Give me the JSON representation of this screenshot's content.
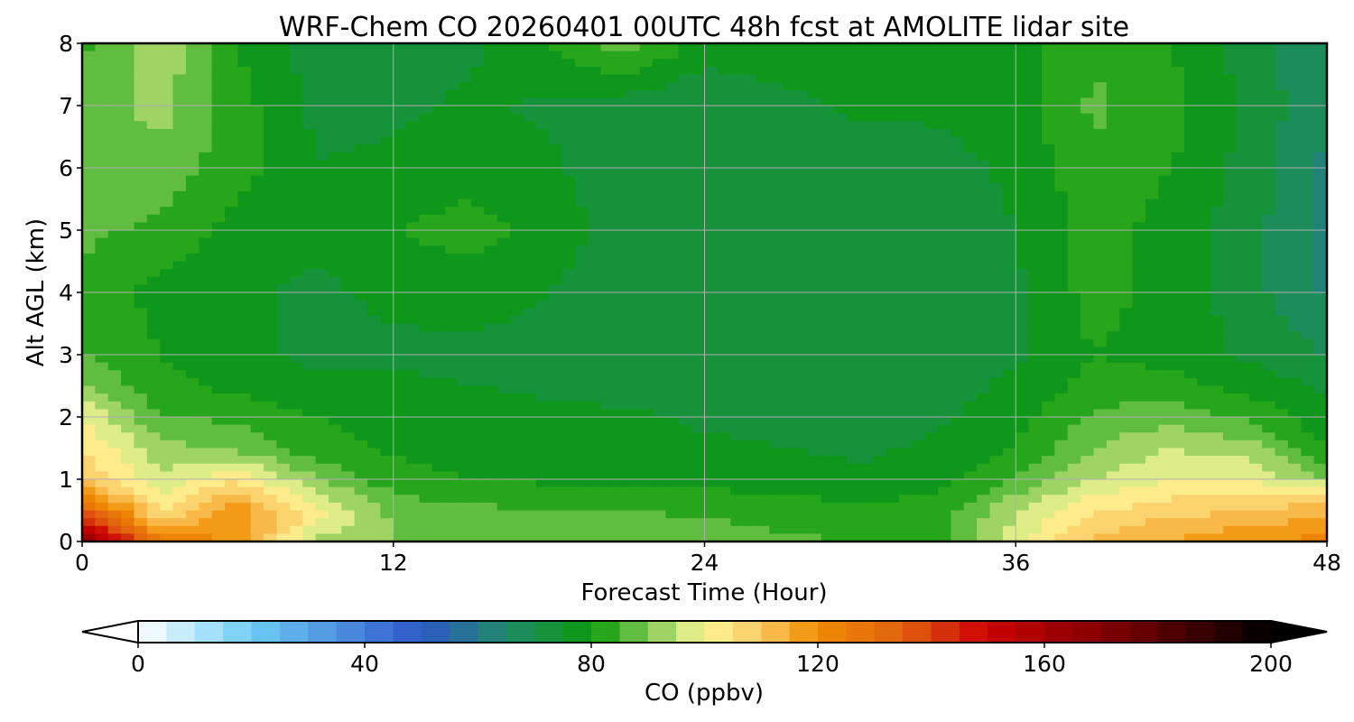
{
  "chart_data": {
    "type": "heatmap",
    "title": "WRF-Chem CO  20260401 00UTC 48h fcst at AMOLITE lidar site",
    "xlabel": "Forecast Time (Hour)",
    "ylabel": "Alt AGL (km)",
    "xlim": [
      0,
      48
    ],
    "ylim": [
      0,
      8
    ],
    "xticks": [
      "0",
      "12",
      "24",
      "36",
      "48"
    ],
    "yticks": [
      "0",
      "1",
      "2",
      "3",
      "4",
      "5",
      "6",
      "7",
      "8"
    ],
    "grid": true,
    "x": [
      0,
      3,
      6,
      9,
      12,
      15,
      18,
      21,
      24,
      27,
      30,
      33,
      36,
      39,
      42,
      45,
      48
    ],
    "y": [
      0,
      0.25,
      0.5,
      0.75,
      1,
      1.5,
      2,
      2.5,
      3,
      4,
      5,
      6,
      7,
      8
    ],
    "z": [
      [
        170,
        128,
        118,
        92,
        90,
        88,
        89,
        90,
        88,
        86,
        85,
        84,
        98,
        112,
        115,
        118,
        122
      ],
      [
        150,
        112,
        120,
        100,
        90,
        88,
        87,
        87,
        86,
        84,
        83,
        83,
        96,
        108,
        112,
        115,
        118
      ],
      [
        135,
        105,
        118,
        102,
        88,
        86,
        85,
        85,
        84,
        82,
        81,
        82,
        94,
        104,
        108,
        110,
        112
      ],
      [
        120,
        100,
        112,
        96,
        85,
        83,
        82,
        82,
        81,
        80,
        79,
        80,
        90,
        100,
        104,
        106,
        108
      ],
      [
        110,
        96,
        104,
        90,
        82,
        80,
        79,
        79,
        78,
        77,
        76,
        78,
        85,
        95,
        100,
        100,
        90
      ],
      [
        105,
        92,
        88,
        82,
        79,
        78,
        77,
        77,
        76,
        75,
        74,
        76,
        80,
        90,
        95,
        92,
        80
      ],
      [
        100,
        85,
        84,
        80,
        78,
        77,
        76,
        76,
        74,
        73,
        73,
        74,
        78,
        86,
        88,
        84,
        76
      ],
      [
        90,
        82,
        78,
        76,
        76,
        75,
        74,
        73,
        72,
        72,
        72,
        73,
        76,
        82,
        82,
        78,
        74
      ],
      [
        85,
        80,
        76,
        74,
        74,
        74,
        73,
        72,
        71,
        71,
        71,
        72,
        74,
        80,
        78,
        74,
        70
      ],
      [
        84,
        78,
        76,
        74,
        76,
        77,
        75,
        72,
        71,
        71,
        71,
        72,
        74,
        82,
        78,
        72,
        64
      ],
      [
        86,
        84,
        78,
        76,
        80,
        82,
        78,
        72,
        71,
        71,
        70,
        72,
        75,
        82,
        78,
        72,
        63
      ],
      [
        88,
        88,
        82,
        75,
        76,
        78,
        76,
        71,
        70,
        71,
        72,
        73,
        76,
        84,
        80,
        73,
        64
      ],
      [
        86,
        92,
        82,
        74,
        74,
        76,
        74,
        72,
        70,
        73,
        76,
        76,
        78,
        86,
        82,
        74,
        65
      ],
      [
        84,
        94,
        80,
        72,
        70,
        74,
        80,
        88,
        78,
        80,
        80,
        76,
        78,
        84,
        80,
        72,
        65
      ]
    ],
    "colorbar": {
      "label": "CO  (ppbv)",
      "ticks": [
        "0",
        "40",
        "80",
        "120",
        "160",
        "200"
      ],
      "range": [
        0,
        200
      ],
      "extend": "both",
      "stops": [
        {
          "v": 0,
          "c": "#ffffff"
        },
        {
          "v": 20,
          "c": "#6ecdf6"
        },
        {
          "v": 50,
          "c": "#2e58c8"
        },
        {
          "v": 65,
          "c": "#1f8a6a"
        },
        {
          "v": 80,
          "c": "#0a9a0a"
        },
        {
          "v": 90,
          "c": "#7cc850"
        },
        {
          "v": 100,
          "c": "#fff89a"
        },
        {
          "v": 110,
          "c": "#fbc860"
        },
        {
          "v": 120,
          "c": "#f08c00"
        },
        {
          "v": 135,
          "c": "#e06010"
        },
        {
          "v": 150,
          "c": "#cc0000"
        },
        {
          "v": 175,
          "c": "#700000"
        },
        {
          "v": 200,
          "c": "#000000"
        }
      ]
    }
  }
}
